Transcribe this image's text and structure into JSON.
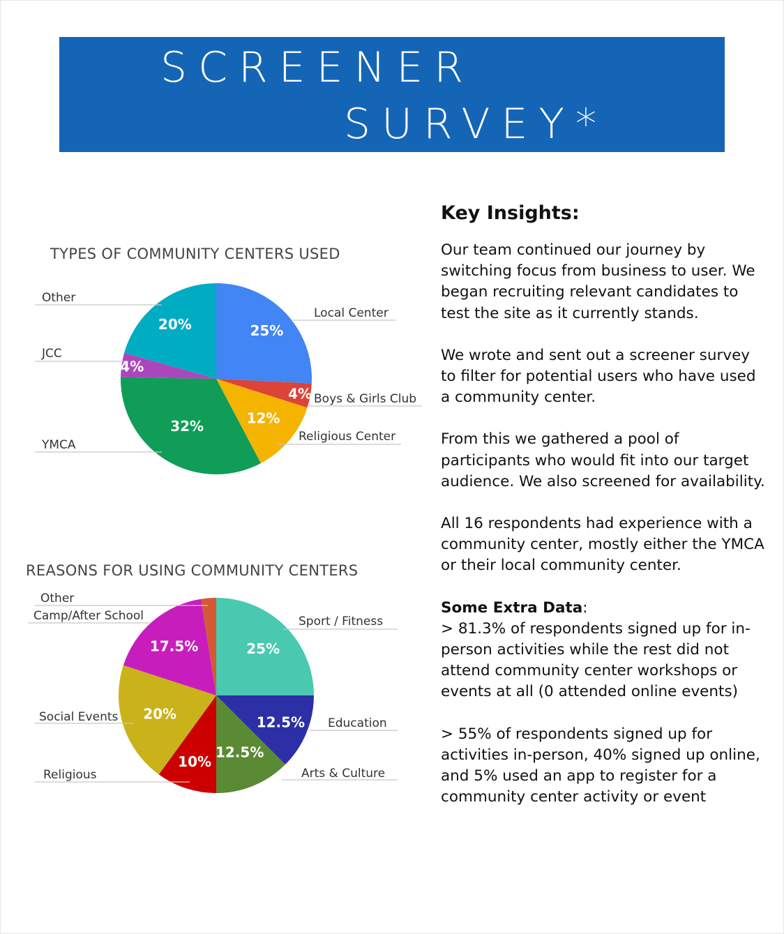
{
  "banner": {
    "line1": "SCREENER",
    "line2": "SURVEY*",
    "color": "#1565b6"
  },
  "chart_data": [
    {
      "type": "pie",
      "title": "TYPES OF COMMUNITY CENTERS USED",
      "categories": [
        "Local Center",
        "Boys & Girls Club",
        "Religious Center",
        "YMCA",
        "JCC",
        "Other"
      ],
      "values": [
        25,
        4,
        12,
        32,
        4,
        20
      ],
      "value_labels": [
        "25%",
        "4%",
        "12%",
        "32%",
        "4%",
        "20%"
      ],
      "colors": [
        "#4285f4",
        "#db4437",
        "#f4b400",
        "#0f9d58",
        "#ab47bc",
        "#00acc1"
      ],
      "legend": "outside labels with leader lines"
    },
    {
      "type": "pie",
      "title": "REASONS FOR USING COMMUNITY CENTERS",
      "categories": [
        "Sport / Fitness",
        "Education",
        "Arts & Culture",
        "Religious",
        "Social Events",
        "Camp/After School",
        "Other"
      ],
      "values": [
        25,
        12.5,
        12.5,
        10,
        20,
        17.5,
        2.5
      ],
      "value_labels": [
        "25%",
        "12.5%",
        "12.5%",
        "10%",
        "20%",
        "17.5%",
        ""
      ],
      "colors": [
        "#48c9b0",
        "#2c2fa6",
        "#5b8a34",
        "#cc0000",
        "#c9b21a",
        "#c81dbd",
        "#d35a34"
      ],
      "legend": "outside labels with leader lines"
    }
  ],
  "insights": {
    "heading": "Key Insights:",
    "p1": "Our team continued our journey by switching focus from business to user. We began recruiting relevant candidates to test the site as it currently stands.",
    "p2": "We wrote and sent out a screener survey to filter for potential users who have used a community center.",
    "p3": "From this we gathered a pool of participants who would fit into our target audience. We also screened for availability.",
    "p4": "All 16 respondents had experience with a community center, mostly either the YMCA or their local community center.",
    "extra_heading": "Some Extra Data",
    "extra_colon": ":",
    "extra1": "> 81.3% of respondents signed up for in-person activities while the rest did not attend community center workshops or events at all (0 attended online events)",
    "extra2": "> 55% of respondents signed up for activities in-person, 40% signed up online, and 5% used an app to register for a community center activity or event"
  }
}
